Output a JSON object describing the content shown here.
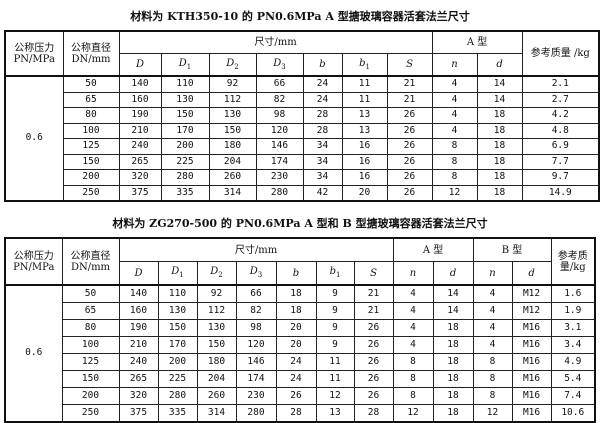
{
  "table1": {
    "title": "材料为 KTH350-10 的 PN0.6MPa A 型搪玻璃容器活套法兰尺寸",
    "headers": {
      "pn": "公称压力 PN/MPa",
      "dn": "公称直径 DN/mm",
      "size": "尺寸/mm",
      "a_type": "A 型",
      "mass": "参考质量 /kg",
      "sub": [
        "D",
        "D1",
        "D2",
        "D3",
        "b",
        "b1",
        "S",
        "n",
        "d"
      ]
    },
    "pn_value": "0.6",
    "rows": [
      [
        "50",
        "140",
        "110",
        "92",
        "66",
        "24",
        "11",
        "21",
        "4",
        "14",
        "2.1"
      ],
      [
        "65",
        "160",
        "130",
        "112",
        "82",
        "24",
        "11",
        "21",
        "4",
        "14",
        "2.7"
      ],
      [
        "80",
        "190",
        "150",
        "130",
        "98",
        "28",
        "13",
        "26",
        "4",
        "18",
        "4.2"
      ],
      [
        "100",
        "210",
        "170",
        "150",
        "120",
        "28",
        "13",
        "26",
        "4",
        "18",
        "4.8"
      ],
      [
        "125",
        "240",
        "200",
        "180",
        "146",
        "34",
        "16",
        "26",
        "8",
        "18",
        "6.9"
      ],
      [
        "150",
        "265",
        "225",
        "204",
        "174",
        "34",
        "16",
        "26",
        "8",
        "18",
        "7.7"
      ],
      [
        "200",
        "320",
        "280",
        "260",
        "230",
        "34",
        "16",
        "26",
        "8",
        "18",
        "9.7"
      ],
      [
        "250",
        "375",
        "335",
        "314",
        "280",
        "42",
        "20",
        "26",
        "12",
        "18",
        "14.9"
      ]
    ]
  },
  "table2": {
    "title": "材料为 ZG270-500 的 PN0.6MPa A 型和 B 型搪玻璃容器活套法兰尺寸",
    "headers": {
      "pn": "公称压力 PN/MPa",
      "dn": "公称直径 DN/mm",
      "size": "尺寸/mm",
      "a_type": "A 型",
      "b_type": "B 型",
      "mass": "参考质 量/kg",
      "sub": [
        "D",
        "D1",
        "D2",
        "D3",
        "b",
        "b1",
        "S",
        "n",
        "d",
        "n",
        "d"
      ]
    },
    "pn_value": "0.6",
    "rows": [
      [
        "50",
        "140",
        "110",
        "92",
        "66",
        "18",
        "9",
        "21",
        "4",
        "14",
        "4",
        "M12",
        "1.6"
      ],
      [
        "65",
        "160",
        "130",
        "112",
        "82",
        "18",
        "9",
        "21",
        "4",
        "14",
        "4",
        "M12",
        "1.9"
      ],
      [
        "80",
        "190",
        "150",
        "130",
        "98",
        "20",
        "9",
        "26",
        "4",
        "18",
        "4",
        "M16",
        "3.1"
      ],
      [
        "100",
        "210",
        "170",
        "150",
        "120",
        "20",
        "9",
        "26",
        "4",
        "18",
        "4",
        "M16",
        "3.4"
      ],
      [
        "125",
        "240",
        "200",
        "180",
        "146",
        "24",
        "11",
        "26",
        "8",
        "18",
        "8",
        "M16",
        "4.9"
      ],
      [
        "150",
        "265",
        "225",
        "204",
        "174",
        "24",
        "11",
        "26",
        "8",
        "18",
        "8",
        "M16",
        "5.4"
      ],
      [
        "200",
        "320",
        "280",
        "260",
        "230",
        "26",
        "12",
        "26",
        "8",
        "18",
        "8",
        "M16",
        "7.4"
      ],
      [
        "250",
        "375",
        "335",
        "314",
        "280",
        "28",
        "13",
        "28",
        "12",
        "18",
        "12",
        "M16",
        "10.6"
      ]
    ]
  }
}
